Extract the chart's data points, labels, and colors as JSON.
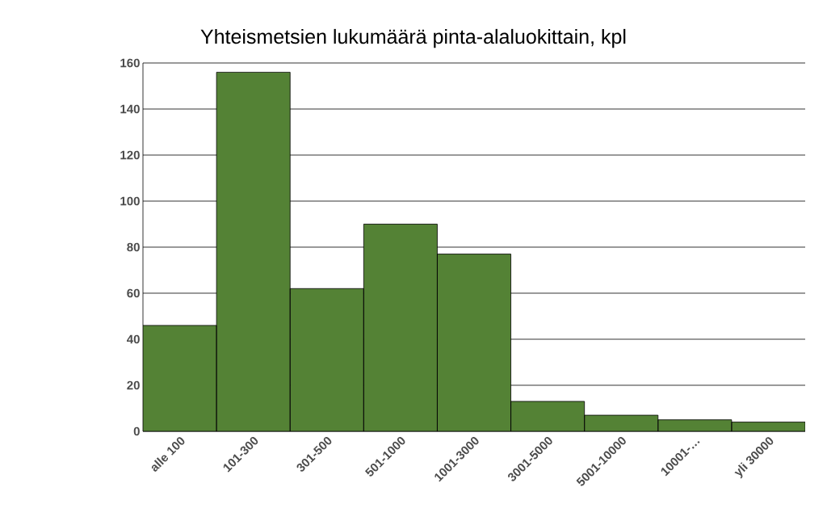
{
  "chart_data": {
    "type": "bar",
    "title": "Yhteismetsien lukumäärä pinta-alaluokittain, kpl",
    "categories": [
      "alle 100",
      "101-300",
      "301-500",
      "501-1000",
      "1001-3000",
      "3001-5000",
      "5001-10000",
      "10001-…",
      "yli 30000"
    ],
    "values": [
      46,
      156,
      62,
      90,
      77,
      13,
      7,
      5,
      4
    ],
    "color": "#548235",
    "ylim": [
      0,
      160
    ],
    "yticks": [
      0,
      20,
      40,
      60,
      80,
      100,
      120,
      140,
      160
    ],
    "grid": "y"
  }
}
